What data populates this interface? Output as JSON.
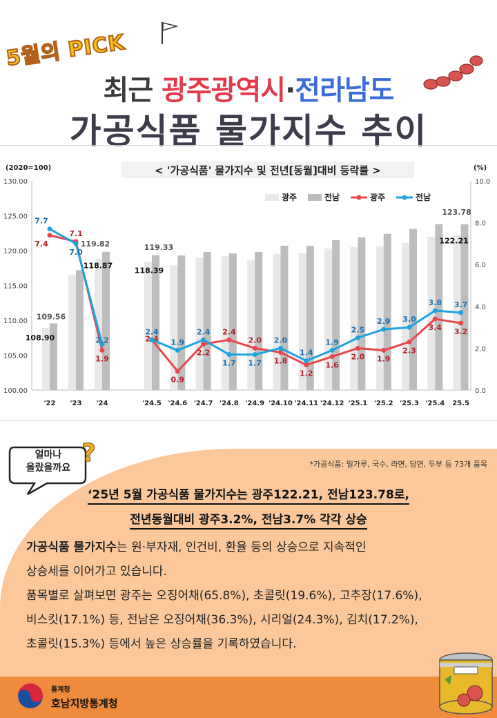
{
  "header": {
    "badge": "5월의 PICK",
    "title_line1_prefix": "최근 ",
    "title_line1_red": "광주광역시",
    "title_line1_dot": "·",
    "title_line1_blue": "전라남도",
    "title_line2": "가공식품 물가지수 추이"
  },
  "colors": {
    "gwangju_bar": "#e8e8e8",
    "jeonnam_bar": "#bdbdbd",
    "gwangju_line": "#e8474c",
    "jeonnam_line": "#1fa3e0",
    "panel": "#fcc89b",
    "footer": "#f08a3c"
  },
  "chart_data": {
    "type": "bar+line",
    "title": "< '가공식품'  물가지수 및 전년[동월]대비 등락률 >",
    "left_axis_label": "(2020=100)",
    "right_axis_label": "(%)",
    "left_ylim": [
      100,
      130
    ],
    "left_ticks": [
      "100.00",
      "105.00",
      "110.00",
      "115.00",
      "120.00",
      "125.00",
      "130.00"
    ],
    "right_ylim": [
      0,
      10
    ],
    "right_ticks": [
      "0.0",
      "2.0",
      "4.0",
      "6.0",
      "8.0",
      "10.0"
    ],
    "categories": [
      "'22",
      "'23",
      "'24",
      "'24.5",
      "'24.6",
      "'24.7",
      "'24.8",
      "'24.9",
      "'24.10",
      "'24.11",
      "'24.12",
      "'25.1",
      "'25.2",
      "'25.3",
      "'25.4",
      "25.5"
    ],
    "legend": [
      "광주",
      "전남",
      "광주",
      "전남"
    ],
    "series": [
      {
        "name": "광주",
        "kind": "bar",
        "axis": "left",
        "values": [
          108.9,
          116.5,
          118.87,
          118.39,
          117.9,
          119.0,
          119.2,
          118.6,
          119.5,
          119.6,
          120.3,
          120.5,
          120.6,
          121.1,
          122.0,
          122.21
        ]
      },
      {
        "name": "전남",
        "kind": "bar",
        "axis": "left",
        "values": [
          109.56,
          117.2,
          119.82,
          119.33,
          119.3,
          119.8,
          119.6,
          119.8,
          120.7,
          120.7,
          121.5,
          121.9,
          122.4,
          123.1,
          123.8,
          123.78
        ]
      },
      {
        "name": "광주",
        "kind": "line",
        "axis": "right",
        "values": [
          7.4,
          7.1,
          1.9,
          2.4,
          0.9,
          2.2,
          2.4,
          2.0,
          1.8,
          1.2,
          1.6,
          2.0,
          1.9,
          2.3,
          3.4,
          3.2
        ]
      },
      {
        "name": "전남",
        "kind": "line",
        "axis": "right",
        "values": [
          7.7,
          7.0,
          2.2,
          2.4,
          1.9,
          2.4,
          1.7,
          1.7,
          2.0,
          1.4,
          1.9,
          2.5,
          2.9,
          3.0,
          3.8,
          3.7
        ]
      }
    ],
    "bar_value_labels": [
      {
        "index": 0,
        "gwangju": "108.90",
        "jeonnam": "109.56"
      },
      {
        "index": 2,
        "gwangju": "118.87",
        "jeonnam": "119.82"
      },
      {
        "index": 3,
        "gwangju": "118.39",
        "jeonnam": "119.33"
      },
      {
        "index": 15,
        "gwangju": "122.21",
        "jeonnam": "123.78"
      }
    ],
    "gwangju_line_labels": [
      "7.4",
      "7.1",
      "1.9",
      "2.4",
      "0.9",
      "2.2",
      "2.4",
      "2.0",
      "1.8",
      "1.2",
      "1.6",
      "2.0",
      "1.9",
      "2.3",
      "3.4",
      "3.2"
    ],
    "jeonnam_line_labels": [
      "7.7",
      "7.0",
      "2.2",
      "2.4",
      "1.9",
      "2.4",
      "1.7",
      "1.7",
      "2.0",
      "1.4",
      "1.9",
      "2.5",
      "2.9",
      "3.0",
      "3.8",
      "3.7"
    ],
    "legend_placement": "top-right",
    "grid": false
  },
  "callout": {
    "bubble_line1": "얼마나",
    "bubble_line2": "올랐을까요",
    "qmark": "?",
    "note": "*가공식품: 밀가루, 국수, 라면, 당면, 두부 등 73개 품목",
    "headline1": "‘25년 5월 가공식품 물가지수는 광주122.21, 전남123.78로,",
    "headline2": "전년동월대비 광주3.2%, 전남3.7% 각각 상승",
    "body_bold": "가공식품 물가지수",
    "body_rest1": "는 원·부자재, 인건비, 환율 등의 상승으로 지속적인",
    "body_line2": "상승세를 이어가고 있습니다.",
    "body_line3": "품목별로 살펴보면 광주는 오징어채(65.8%), 초콜릿(19.6%), 고추장(17.6%),",
    "body_line4": "비스킷(17.1%) 등, 전남은 오징어채(36.3%), 시리얼(24.3%), 김치(17.2%),",
    "body_line5": "초콜릿(15.3%) 등에서 높은 상승률을 기록하였습니다."
  },
  "footer": {
    "agency_small": "통계청",
    "agency": "호남지방통계청"
  }
}
